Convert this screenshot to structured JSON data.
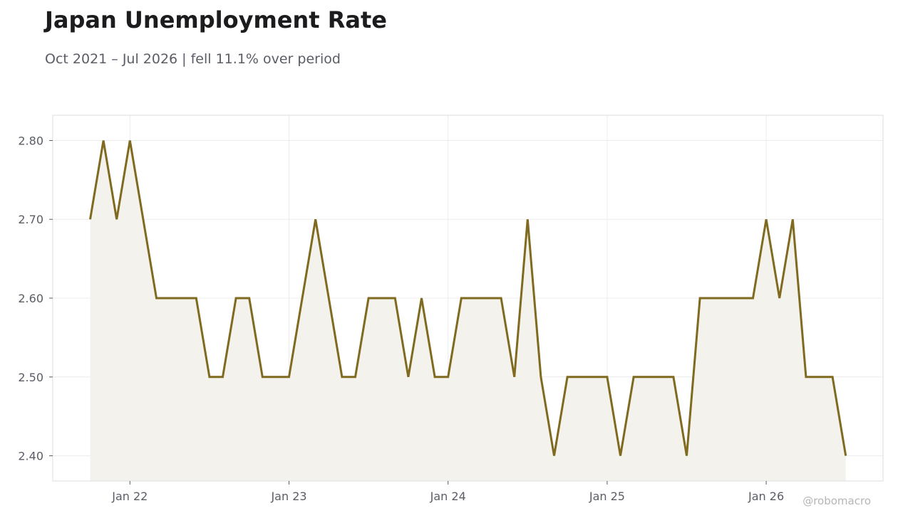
{
  "chart_data": {
    "type": "area",
    "title": "Japan Unemployment Rate",
    "subtitle": "Oct 2021 – Jul 2026 | fell 11.1% over period",
    "xlabel": "",
    "ylabel": "",
    "x_start": "2021-10",
    "x": [
      "2021-10",
      "2021-11",
      "2021-12",
      "2022-01",
      "2022-02",
      "2022-03",
      "2022-04",
      "2022-05",
      "2022-06",
      "2022-07",
      "2022-08",
      "2022-09",
      "2022-10",
      "2022-11",
      "2022-12",
      "2023-01",
      "2023-02",
      "2023-03",
      "2023-04",
      "2023-05",
      "2023-06",
      "2023-07",
      "2023-08",
      "2023-09",
      "2023-10",
      "2023-11",
      "2023-12",
      "2024-01",
      "2024-02",
      "2024-03",
      "2024-04",
      "2024-05",
      "2024-06",
      "2024-07",
      "2024-08",
      "2024-09",
      "2024-10",
      "2024-11",
      "2024-12",
      "2025-01",
      "2025-02",
      "2025-03",
      "2025-04",
      "2025-05",
      "2025-06",
      "2025-07",
      "2025-08",
      "2025-09",
      "2025-10",
      "2025-11",
      "2025-12",
      "2026-01",
      "2026-02",
      "2026-03",
      "2026-04",
      "2026-05",
      "2026-06",
      "2026-07"
    ],
    "series": [
      {
        "values": [
          2.7,
          2.8,
          2.7,
          2.8,
          2.7,
          2.6,
          2.6,
          2.6,
          2.6,
          2.5,
          2.5,
          2.6,
          2.6,
          2.5,
          2.5,
          2.5,
          2.6,
          2.7,
          2.6,
          2.5,
          2.5,
          2.6,
          2.6,
          2.6,
          2.5,
          2.6,
          2.5,
          2.5,
          2.6,
          2.6,
          2.6,
          2.6,
          2.5,
          2.7,
          2.5,
          2.4,
          2.5,
          2.5,
          2.5,
          2.5,
          2.4,
          2.5,
          2.5,
          2.5,
          2.5,
          2.4,
          2.6,
          2.6,
          2.6,
          2.6,
          2.6,
          2.7,
          2.6,
          2.7,
          2.5,
          2.5,
          2.5,
          2.4
        ]
      }
    ],
    "x_ticks": [
      "Jan 22",
      "Jan 23",
      "Jan 24",
      "Jan 25",
      "Jan 26"
    ],
    "y_ticks": [
      "2.80",
      "2.70",
      "2.60",
      "2.50",
      "2.40"
    ],
    "ylim": [
      2.368,
      2.832
    ],
    "grid": true,
    "legend": "none",
    "colors": {
      "line": "#7f6a1f",
      "fill": "#f3f2ec",
      "grid": "#ececec",
      "frame": "#dddddd",
      "tick_text": "#5a5d66"
    }
  },
  "watermark": "@robomacro"
}
